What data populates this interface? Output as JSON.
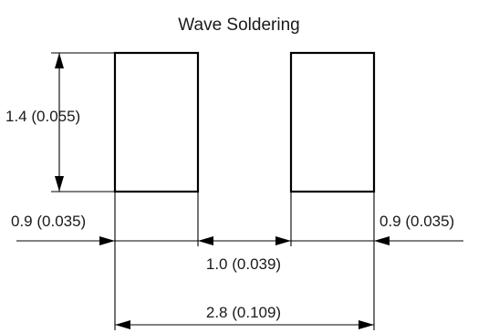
{
  "diagram": {
    "title": "Wave Soldering",
    "dimensions": {
      "pad_height": "1.4 (0.055)",
      "pad_width_left": "0.9 (0.035)",
      "pad_width_right": "0.9 (0.035)",
      "pad_gap": "1.0 (0.039)",
      "overall_length": "2.8 (0.109)"
    }
  }
}
